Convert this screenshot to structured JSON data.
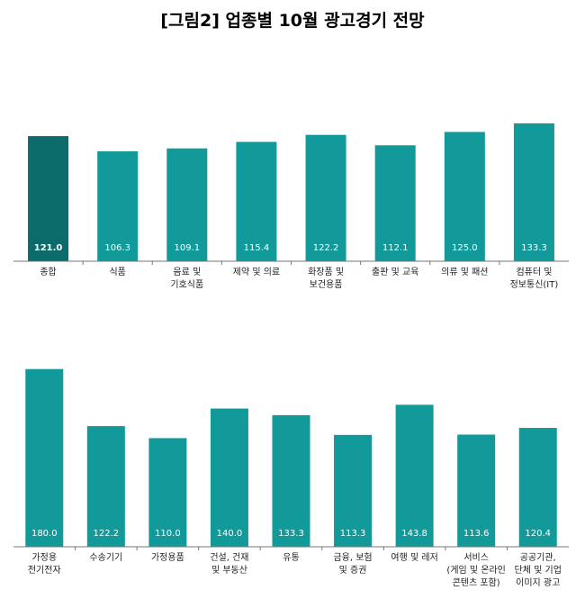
{
  "title": "[그림2] 업종별 10월 광고경기 전망",
  "chart_data": [
    {
      "type": "bar",
      "categories": [
        "종합",
        "식품",
        "음료 및\n기호식품",
        "제약 및 의료",
        "화장품 및\n보건용품",
        "출판 및 교육",
        "의류 및 패션",
        "컴퓨터 및\n정보통신(IT)"
      ],
      "values": [
        121.0,
        106.3,
        109.1,
        115.4,
        122.2,
        112.1,
        125.0,
        133.3
      ],
      "value_labels": [
        "121.0",
        "106.3",
        "109.1",
        "115.4",
        "122.2",
        "112.1",
        "125.0",
        "133.3"
      ],
      "colors": [
        "#0b6a6a",
        "#119a99",
        "#119a99",
        "#119a99",
        "#119a99",
        "#119a99",
        "#119a99",
        "#119a99"
      ]
    },
    {
      "type": "bar",
      "categories": [
        "가정용\n전기전자",
        "수송기기",
        "가정용품",
        "건설, 건재\n및 부동산",
        "유통",
        "금융, 보험\n및 증권",
        "여행 및 레저",
        "서비스\n(게임 및 온라인\n콘텐츠 포함)",
        "공공기관,\n단체 및 기업\n이미지 광고"
      ],
      "values": [
        180.0,
        122.2,
        110.0,
        140.0,
        133.3,
        113.3,
        143.8,
        113.6,
        120.4
      ],
      "value_labels": [
        "180.0",
        "122.2",
        "110.0",
        "140.0",
        "133.3",
        "113.3",
        "143.8",
        "113.6",
        "120.4"
      ],
      "color": "#119a99"
    }
  ]
}
